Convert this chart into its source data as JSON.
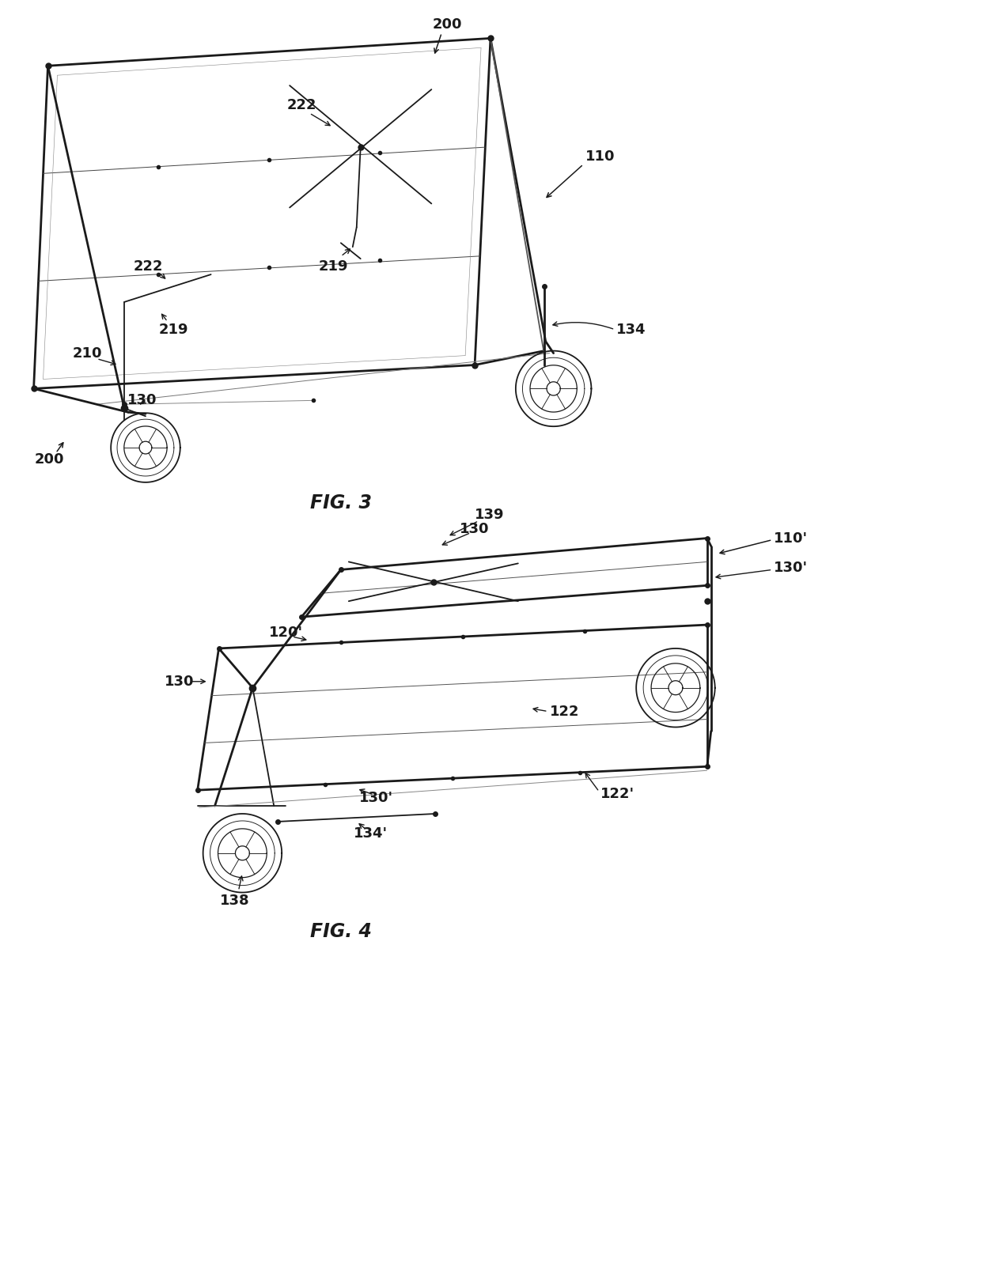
{
  "fig_width": 12.4,
  "fig_height": 16.11,
  "dpi": 100,
  "bg_color": "#ffffff",
  "line_color": "#1a1a1a",
  "lw_thick": 2.0,
  "lw_med": 1.3,
  "lw_thin": 0.7,
  "font_size_label": 13,
  "font_size_fig": 17,
  "fig3_label": "FIG. 3",
  "fig4_label": "FIG. 4"
}
